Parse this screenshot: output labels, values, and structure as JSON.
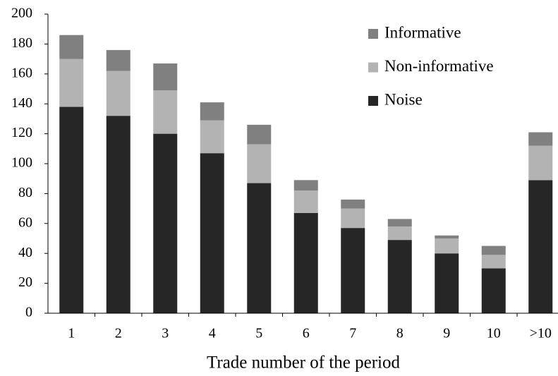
{
  "chart_data": {
    "type": "stacked_bar",
    "x_label": "Trade number of the period",
    "categories": [
      "1",
      "2",
      "3",
      "4",
      "5",
      "6",
      "7",
      "8",
      "9",
      "10",
      ">10"
    ],
    "series": [
      {
        "name": "Noise",
        "color": "#262626",
        "values": [
          138,
          132,
          120,
          107,
          87,
          67,
          57,
          49,
          40,
          30,
          89
        ]
      },
      {
        "name": "Non-informative",
        "color": "#b3b3b3",
        "values": [
          32,
          30,
          29,
          22,
          26,
          15,
          13,
          9,
          10,
          9,
          23
        ]
      },
      {
        "name": "Informative",
        "color": "#808080",
        "values": [
          16,
          14,
          18,
          12,
          13,
          7,
          6,
          5,
          2,
          6,
          9
        ]
      }
    ],
    "ylim": [
      0,
      200
    ],
    "yticks": [
      0,
      20,
      40,
      60,
      80,
      100,
      120,
      140,
      160,
      180,
      200
    ],
    "legend": "top-right"
  }
}
